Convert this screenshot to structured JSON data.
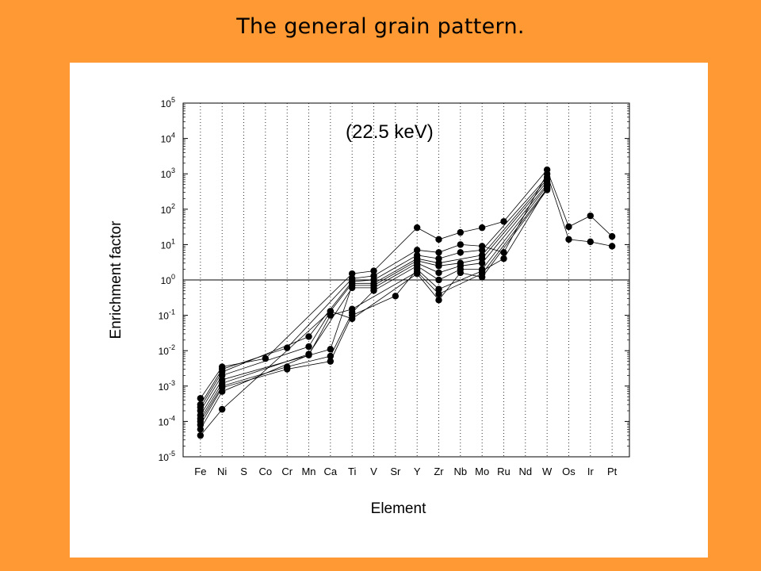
{
  "slide": {
    "title": "The general grain pattern."
  },
  "colors": {
    "background": "#FF9933",
    "panel": "#FFFFFF",
    "ink": "#000000"
  },
  "chart_data": {
    "type": "line",
    "title": "",
    "annotation": "(22.5 keV)",
    "xlabel": "Element",
    "ylabel": "Enrichment factor",
    "yscale": "log",
    "ylim": [
      1e-05,
      100000
    ],
    "yticks": [
      {
        "base": "10",
        "exp": "-5"
      },
      {
        "base": "10",
        "exp": "-4"
      },
      {
        "base": "10",
        "exp": "-3"
      },
      {
        "base": "10",
        "exp": "-2"
      },
      {
        "base": "10",
        "exp": "-1"
      },
      {
        "base": "10",
        "exp": "0"
      },
      {
        "base": "10",
        "exp": "1"
      },
      {
        "base": "10",
        "exp": "2"
      },
      {
        "base": "10",
        "exp": "3"
      },
      {
        "base": "10",
        "exp": "4"
      },
      {
        "base": "10",
        "exp": "5"
      }
    ],
    "categories": [
      "Fe",
      "Ni",
      "S",
      "Co",
      "Cr",
      "Mn",
      "Ca",
      "Ti",
      "V",
      "Sr",
      "Y",
      "Zr",
      "Nb",
      "Mo",
      "Ru",
      "Nd",
      "W",
      "Os",
      "Ir",
      "Pt"
    ],
    "reference_line": 1,
    "grid_x": "dotted",
    "series": [
      {
        "points": [
          [
            "Fe",
            0.00045
          ],
          [
            "Ni",
            0.0035
          ],
          [
            "Co",
            0.006
          ],
          [
            "Ti",
            1.5
          ],
          [
            "V",
            1.8
          ],
          [
            "Y",
            30
          ],
          [
            "Zr",
            14
          ],
          [
            "Nb",
            22
          ],
          [
            "Mo",
            30
          ],
          [
            "Ru",
            45
          ],
          [
            "W",
            1300
          ],
          [
            "Os",
            32
          ],
          [
            "Ir",
            65
          ],
          [
            "Pt",
            17
          ]
        ]
      },
      {
        "points": [
          [
            "Fe",
            0.0003
          ],
          [
            "Ni",
            0.003
          ],
          [
            "Cr",
            0.012
          ],
          [
            "Ti",
            1.1
          ],
          [
            "V",
            1.3
          ],
          [
            "Y",
            7
          ],
          [
            "Zr",
            6
          ],
          [
            "Nb",
            10
          ],
          [
            "Mo",
            9
          ],
          [
            "Ru",
            6
          ],
          [
            "W",
            1000
          ],
          [
            "Os",
            14
          ],
          [
            "Ir",
            12
          ],
          [
            "Pt",
            9
          ]
        ]
      },
      {
        "points": [
          [
            "Fe",
            0.00025
          ],
          [
            "Ni",
            0.0025
          ],
          [
            "Mn",
            0.025
          ],
          [
            "Ti",
            0.9
          ],
          [
            "V",
            1.0
          ],
          [
            "Y",
            5
          ],
          [
            "Zr",
            4
          ],
          [
            "Nb",
            6
          ],
          [
            "Mo",
            7
          ],
          [
            "W",
            800
          ]
        ]
      },
      {
        "points": [
          [
            "Fe",
            0.0002
          ],
          [
            "Ni",
            0.002
          ],
          [
            "Mn",
            0.013
          ],
          [
            "Ca",
            0.13
          ],
          [
            "Ti",
            0.8
          ],
          [
            "V",
            0.8
          ],
          [
            "Y",
            4
          ],
          [
            "Zr",
            3
          ],
          [
            "Mo",
            5
          ],
          [
            "W",
            700
          ]
        ]
      },
      {
        "points": [
          [
            "Fe",
            0.00015
          ],
          [
            "Ni",
            0.0015
          ],
          [
            "Ca",
            0.011
          ],
          [
            "Ti",
            0.7
          ],
          [
            "V",
            0.7
          ],
          [
            "Y",
            3.5
          ],
          [
            "Zr",
            2.5
          ],
          [
            "Nb",
            3
          ],
          [
            "Mo",
            4
          ],
          [
            "W",
            600
          ]
        ]
      },
      {
        "points": [
          [
            "Fe",
            0.00012
          ],
          [
            "Ni",
            0.0012
          ],
          [
            "Mn",
            0.008
          ],
          [
            "Ti",
            0.6
          ],
          [
            "V",
            0.6
          ],
          [
            "Y",
            3
          ],
          [
            "Zr",
            1.6
          ],
          [
            "Nb",
            2.5
          ],
          [
            "Mo",
            3
          ],
          [
            "W",
            500
          ]
        ]
      },
      {
        "points": [
          [
            "Fe",
            0.0001
          ],
          [
            "Ni",
            0.001
          ],
          [
            "Cr",
            0.0035
          ],
          [
            "Ca",
            0.007
          ],
          [
            "Ti",
            0.12
          ],
          [
            "V",
            0.5
          ],
          [
            "Y",
            2.5
          ],
          [
            "Zr",
            1.0
          ],
          [
            "Nb",
            2
          ],
          [
            "Mo",
            2
          ],
          [
            "W",
            450
          ]
        ]
      },
      {
        "points": [
          [
            "Fe",
            8e-05
          ],
          [
            "Ni",
            0.0009
          ],
          [
            "Cr",
            0.003
          ],
          [
            "Ca",
            0.005
          ],
          [
            "Ti",
            0.1
          ],
          [
            "Sr",
            0.35
          ],
          [
            "Y",
            2
          ],
          [
            "Zr",
            0.55
          ],
          [
            "Mo",
            1.8
          ],
          [
            "Ru",
            4
          ],
          [
            "W",
            400
          ]
        ]
      },
      {
        "points": [
          [
            "Fe",
            6e-05
          ],
          [
            "Ni",
            0.0007
          ],
          [
            "Mn",
            0.0075
          ],
          [
            "Ca",
            0.1
          ],
          [
            "Ti",
            0.15
          ],
          [
            "Y",
            1.7
          ],
          [
            "Zr",
            0.4
          ],
          [
            "Mo",
            1.5
          ],
          [
            "W",
            380
          ]
        ]
      },
      {
        "points": [
          [
            "Fe",
            4e-05
          ],
          [
            "Ni",
            0.00022
          ],
          [
            "Ca",
            0.13
          ],
          [
            "Ti",
            0.08
          ],
          [
            "Y",
            1.5
          ],
          [
            "Zr",
            0.27
          ],
          [
            "Nb",
            1.6
          ],
          [
            "Mo",
            1.2
          ],
          [
            "W",
            350
          ]
        ]
      }
    ]
  }
}
